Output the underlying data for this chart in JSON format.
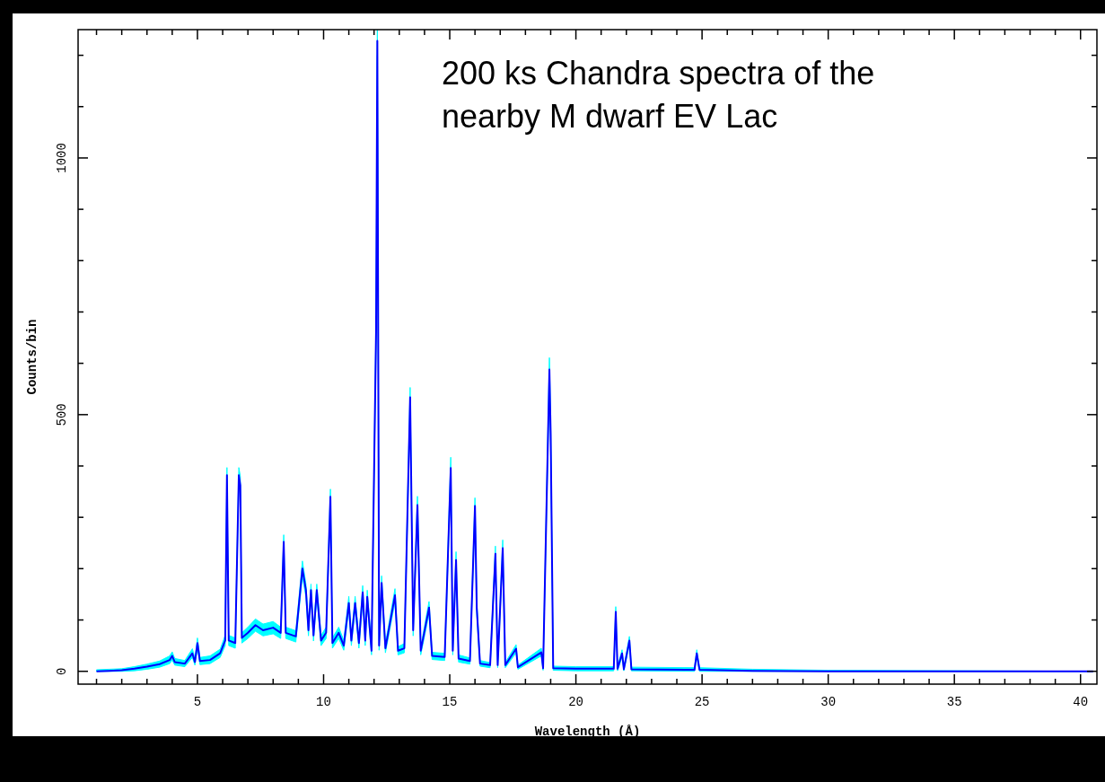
{
  "chart_data": {
    "type": "line",
    "xlabel": "Wavelength (Å)",
    "ylabel": "Counts/bin",
    "annotations": [
      "200 ks Chandra spectra of the nearby M dwarf EV Lac"
    ],
    "xlim": [
      0.27,
      40.65
    ],
    "ylim": [
      -25,
      1250
    ],
    "xticks": [
      {
        "value": 1,
        "label": null
      },
      {
        "value": 2,
        "label": null
      },
      {
        "value": 3,
        "label": null
      },
      {
        "value": 4,
        "label": null
      },
      5,
      {
        "value": 6,
        "label": null
      },
      {
        "value": 7,
        "label": null
      },
      {
        "value": 8,
        "label": null
      },
      {
        "value": 9,
        "label": null
      },
      10,
      {
        "value": 11,
        "label": null
      },
      {
        "value": 12,
        "label": null
      },
      {
        "value": 13,
        "label": null
      },
      {
        "value": 14,
        "label": null
      },
      15,
      {
        "value": 16,
        "label": null
      },
      {
        "value": 17,
        "label": null
      },
      {
        "value": 18,
        "label": null
      },
      {
        "value": 19,
        "label": null
      },
      20,
      {
        "value": 21,
        "label": null
      },
      {
        "value": 22,
        "label": null
      },
      {
        "value": 23,
        "label": null
      },
      {
        "value": 24,
        "label": null
      },
      25,
      {
        "value": 26,
        "label": null
      },
      {
        "value": 27,
        "label": null
      },
      {
        "value": 28,
        "label": null
      },
      {
        "value": 29,
        "label": null
      },
      30,
      {
        "value": 31,
        "label": null
      },
      {
        "value": 32,
        "label": null
      },
      {
        "value": 33,
        "label": null
      },
      {
        "value": 34,
        "label": null
      },
      35,
      {
        "value": 36,
        "label": null
      },
      {
        "value": 37,
        "label": null
      },
      {
        "value": 38,
        "label": null
      },
      {
        "value": 39,
        "label": null
      },
      40
    ],
    "yticks": [
      0,
      {
        "value": 100,
        "label": null
      },
      {
        "value": 200,
        "label": null
      },
      {
        "value": 300,
        "label": null
      },
      {
        "value": 400,
        "label": null
      },
      500,
      {
        "value": 600,
        "label": null
      },
      {
        "value": 700,
        "label": null
      },
      {
        "value": 800,
        "label": null
      },
      {
        "value": 900,
        "label": null
      },
      1000,
      {
        "value": 1100,
        "label": null
      },
      {
        "value": 1200,
        "label": null
      }
    ],
    "grid": false,
    "marker": "none",
    "line_style": "solid",
    "x": [
      1.0,
      1.5,
      2.0,
      2.5,
      3.0,
      3.5,
      3.9,
      4.0,
      4.1,
      4.5,
      4.8,
      4.9,
      5.0,
      5.1,
      5.5,
      5.9,
      6.1,
      6.17,
      6.24,
      6.5,
      6.64,
      6.7,
      6.76,
      7.0,
      7.3,
      7.6,
      8.0,
      8.3,
      8.42,
      8.5,
      8.9,
      9.16,
      9.3,
      9.4,
      9.5,
      9.6,
      9.73,
      9.9,
      10.1,
      10.27,
      10.35,
      10.6,
      10.8,
      11.0,
      11.1,
      11.25,
      11.4,
      11.55,
      11.65,
      11.73,
      11.9,
      12.08,
      12.13,
      12.2,
      12.3,
      12.45,
      12.83,
      12.95,
      13.2,
      13.43,
      13.55,
      13.72,
      13.85,
      14.18,
      14.3,
      14.8,
      15.04,
      15.12,
      15.18,
      15.25,
      15.35,
      15.8,
      16.0,
      16.07,
      16.2,
      16.6,
      16.81,
      16.9,
      17.1,
      17.2,
      17.63,
      17.7,
      18.63,
      18.7,
      18.95,
      19.0,
      19.1,
      20.0,
      21.5,
      21.58,
      21.65,
      21.83,
      21.9,
      22.12,
      22.2,
      24.7,
      24.79,
      24.9,
      27.0,
      30.0,
      40.5
    ],
    "series": [
      {
        "color": "#0000ff",
        "values": [
          0,
          1,
          2,
          5,
          9,
          14,
          22,
          30,
          18,
          15,
          35,
          18,
          55,
          20,
          22,
          35,
          60,
          382,
          60,
          55,
          382,
          362,
          65,
          75,
          90,
          80,
          85,
          75,
          252,
          75,
          68,
          200,
          158,
          80,
          158,
          70,
          158,
          60,
          75,
          340,
          55,
          75,
          50,
          133,
          60,
          133,
          55,
          154,
          60,
          145,
          40,
          662,
          1228,
          50,
          172,
          45,
          148,
          40,
          45,
          534,
          80,
          324,
          40,
          124,
          30,
          28,
          396,
          40,
          125,
          217,
          25,
          20,
          322,
          124,
          15,
          12,
          229,
          12,
          240,
          12,
          44,
          8,
          37,
          6,
          588,
          462,
          6,
          5,
          5,
          116,
          5,
          35,
          4,
          60,
          4,
          3,
          35,
          3,
          1,
          0,
          0
        ],
        "lower": [
          0,
          0,
          0,
          1,
          4,
          8,
          15,
          22,
          12,
          9,
          27,
          12,
          46,
          13,
          15,
          27,
          50,
          362,
          50,
          45,
          362,
          343,
          55,
          64,
          78,
          69,
          73,
          64,
          235,
          64,
          57,
          185,
          145,
          69,
          145,
          59,
          145,
          50,
          64,
          323,
          45,
          64,
          41,
          120,
          50,
          120,
          45,
          141,
          50,
          132,
          32,
          636,
          1200,
          41,
          158,
          36,
          135,
          32,
          36,
          512,
          69,
          307,
          32,
          112,
          23,
          21,
          377,
          32,
          113,
          203,
          18,
          14,
          305,
          112,
          10,
          7,
          214,
          7,
          225,
          7,
          36,
          4,
          30,
          2,
          565,
          441,
          2,
          1,
          1,
          105,
          1,
          28,
          1,
          51,
          1,
          0,
          28,
          0,
          0,
          0,
          0
        ],
        "upper": [
          3,
          4,
          5,
          9,
          14,
          20,
          30,
          38,
          25,
          21,
          44,
          25,
          65,
          27,
          30,
          43,
          70,
          397,
          70,
          65,
          397,
          380,
          75,
          86,
          102,
          92,
          97,
          86,
          266,
          86,
          79,
          215,
          170,
          92,
          170,
          81,
          170,
          70,
          86,
          355,
          65,
          86,
          60,
          146,
          70,
          146,
          65,
          167,
          70,
          158,
          48,
          685,
          1250,
          60,
          186,
          54,
          161,
          48,
          54,
          553,
          92,
          341,
          48,
          136,
          37,
          35,
          417,
          48,
          137,
          233,
          32,
          26,
          338,
          136,
          21,
          17,
          244,
          17,
          256,
          17,
          52,
          12,
          45,
          10,
          611,
          483,
          10,
          9,
          9,
          126,
          9,
          42,
          8,
          68,
          8,
          7,
          42,
          7,
          4,
          2,
          0
        ]
      }
    ]
  }
}
